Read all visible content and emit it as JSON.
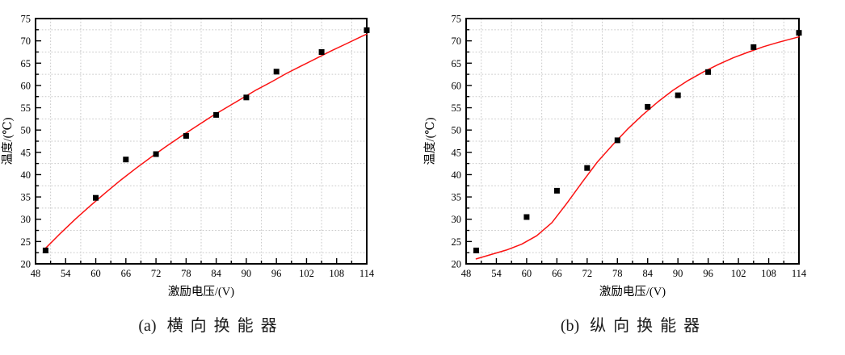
{
  "colors": {
    "curve": "#fb1212",
    "marker": "#000000",
    "grid": "#c9c9c9",
    "frame": "#000000"
  },
  "chart_data": [
    {
      "type": "scatter",
      "caption_label": "(a)",
      "caption_text": "横向换能器",
      "xlabel": "激励电压/(V)",
      "ylabel": "温度/(℃)",
      "xlim": [
        48,
        114
      ],
      "ylim": [
        20,
        75
      ],
      "x_ticks": [
        48,
        54,
        60,
        66,
        72,
        78,
        84,
        90,
        96,
        102,
        108,
        114
      ],
      "y_ticks": [
        20,
        25,
        30,
        35,
        40,
        45,
        50,
        55,
        60,
        65,
        70,
        75
      ],
      "grid": "dotted gridlines at minor tick positions only",
      "legend": "none",
      "series": [
        {
          "name": "fit-curve",
          "type": "line",
          "x": [
            50,
            53,
            56,
            59,
            62,
            65,
            68,
            71,
            74,
            77,
            80,
            83,
            86,
            89,
            92,
            95,
            98,
            101,
            104,
            107,
            110,
            113,
            114
          ],
          "y": [
            23.5,
            26.9,
            30.1,
            33.1,
            36.0,
            38.8,
            41.4,
            43.9,
            46.3,
            48.6,
            50.8,
            53.0,
            55.0,
            57.0,
            59.0,
            60.8,
            62.7,
            64.4,
            66.1,
            67.8,
            69.4,
            71.0,
            71.5
          ]
        },
        {
          "name": "measured-points",
          "type": "scatter",
          "marker": "square",
          "x": [
            50,
            60,
            66,
            72,
            78,
            84,
            90,
            96,
            105,
            114
          ],
          "y": [
            23.0,
            34.8,
            43.4,
            44.6,
            48.7,
            53.4,
            57.3,
            63.1,
            67.5,
            72.4
          ]
        }
      ]
    },
    {
      "type": "scatter",
      "caption_label": "(b)",
      "caption_text": "纵向换能器",
      "xlabel": "激励电压/(V)",
      "ylabel": "温度/(℃)",
      "xlim": [
        48,
        114
      ],
      "ylim": [
        20,
        75
      ],
      "x_ticks": [
        48,
        54,
        60,
        66,
        72,
        78,
        84,
        90,
        96,
        102,
        108,
        114
      ],
      "y_ticks": [
        20,
        25,
        30,
        35,
        40,
        45,
        50,
        55,
        60,
        65,
        70,
        75
      ],
      "grid": "dotted gridlines at minor tick positions only",
      "legend": "none",
      "series": [
        {
          "name": "fit-curve",
          "type": "line",
          "x": [
            50,
            53,
            56,
            59,
            62,
            65,
            68,
            71,
            74,
            77,
            80,
            83,
            86,
            89,
            92,
            95,
            98,
            101,
            104,
            107,
            110,
            113,
            114
          ],
          "y": [
            21.1,
            22.1,
            23.1,
            24.4,
            26.3,
            29.2,
            33.6,
            38.3,
            42.8,
            46.6,
            50.2,
            53.4,
            56.3,
            58.9,
            61.1,
            63.0,
            64.7,
            66.2,
            67.5,
            68.7,
            69.7,
            70.6,
            70.9
          ]
        },
        {
          "name": "measured-points",
          "type": "scatter",
          "marker": "square",
          "x": [
            50,
            60,
            66,
            72,
            78,
            84,
            90,
            96,
            105,
            114
          ],
          "y": [
            23.0,
            30.5,
            36.4,
            41.5,
            47.7,
            55.2,
            57.8,
            63.0,
            68.6,
            71.8
          ]
        }
      ]
    }
  ]
}
